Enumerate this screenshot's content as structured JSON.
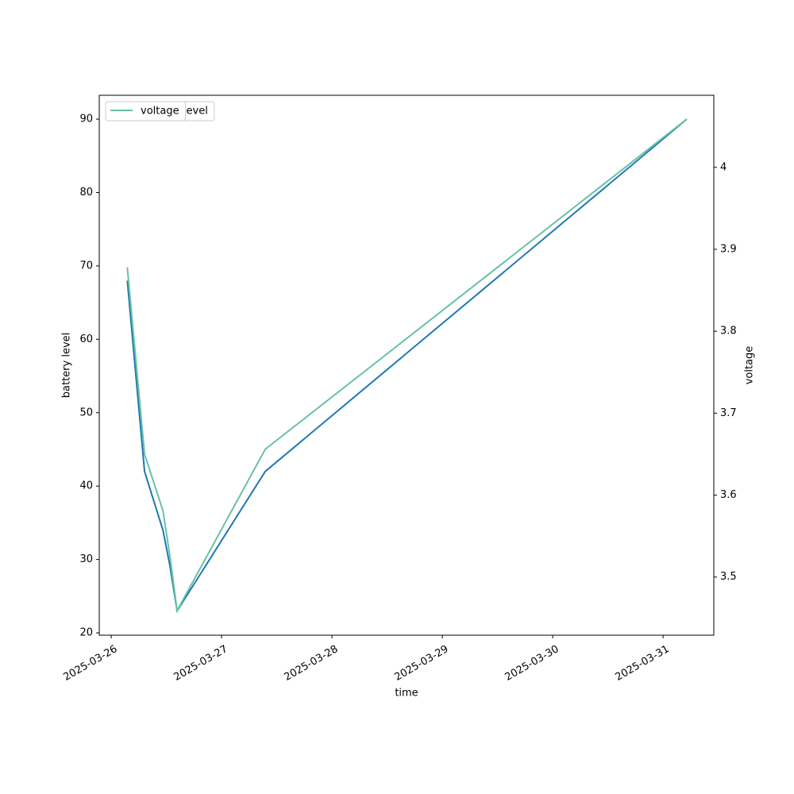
{
  "chart_data": {
    "type": "line",
    "x": [
      "2025-03-26 03:30",
      "2025-03-26 07:15",
      "2025-03-26 11:15",
      "2025-03-26 12:45",
      "2025-03-26 14:20",
      "2025-03-27 09:30",
      "2025-03-31 05:10"
    ],
    "series": [
      {
        "name": "battery_level",
        "color": "#1f77b4",
        "values": [
          68,
          42,
          34,
          29.2,
          23,
          42,
          90
        ]
      },
      {
        "name": "voltage",
        "color": "#66c2a5",
        "axis": "y2",
        "values": [
          3.878,
          3.65,
          3.581,
          3.526,
          3.459,
          3.656,
          4.059
        ]
      }
    ],
    "xlabel": "time",
    "ylabel": "battery level",
    "y2label": "voltage",
    "xlim": [
      "2025-03-25 21:24",
      "2025-03-31 11:02"
    ],
    "xticks": [
      "2025-03-26",
      "2025-03-27",
      "2025-03-28",
      "2025-03-29",
      "2025-03-30",
      "2025-03-31"
    ],
    "ylim": [
      19.68,
      93.25
    ],
    "yticks": [
      20,
      30,
      40,
      50,
      60,
      70,
      80,
      90
    ],
    "y2lim": [
      3.429,
      4.088
    ],
    "y2ticks": [
      3.5,
      3.6,
      3.7,
      3.8,
      3.9,
      4.0
    ],
    "legend": "upper left"
  }
}
